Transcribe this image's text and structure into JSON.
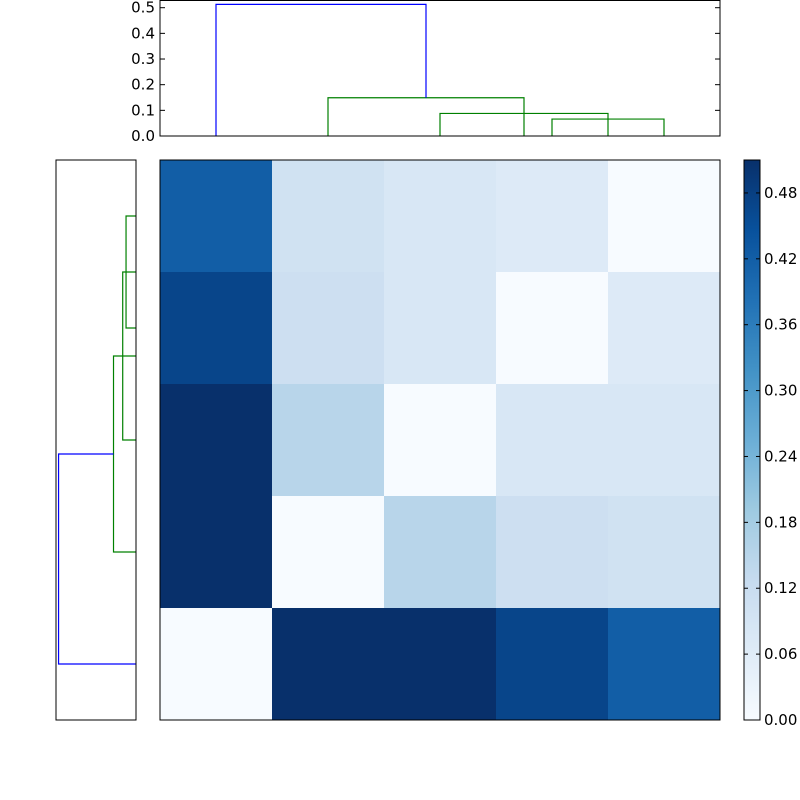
{
  "chart_data": {
    "type": "heatmap",
    "title": "",
    "colormap": "Blues",
    "colormap_stops": [
      "#f7fbff",
      "#deebf7",
      "#c6dbef",
      "#9ecae1",
      "#6baed6",
      "#4292c6",
      "#2171b5",
      "#08519c",
      "#08306b"
    ],
    "value_range": [
      0,
      0.51
    ],
    "matrix": [
      [
        0.42,
        0.1,
        0.08,
        0.066,
        0.0
      ],
      [
        0.47,
        0.11,
        0.08,
        0.0,
        0.066
      ],
      [
        0.51,
        0.15,
        0.0,
        0.08,
        0.08
      ],
      [
        0.51,
        0.0,
        0.15,
        0.11,
        0.1
      ],
      [
        0.0,
        0.51,
        0.51,
        0.47,
        0.42
      ]
    ],
    "colorbar": {
      "ticks": [
        "0.00",
        "0.06",
        "0.12",
        "0.18",
        "0.24",
        "0.30",
        "0.36",
        "0.42",
        "0.48"
      ]
    },
    "top_dendrogram": {
      "ylim": [
        0,
        0.53
      ],
      "yticks": [
        "0.0",
        "0.1",
        "0.2",
        "0.3",
        "0.4",
        "0.5"
      ],
      "links": [
        {
          "icoord": [
            35,
            35,
            45,
            45
          ],
          "dcoord": [
            0,
            0.066,
            0.066,
            0
          ],
          "color": "#008000"
        },
        {
          "icoord": [
            25,
            25,
            40,
            40
          ],
          "dcoord": [
            0,
            0.088,
            0.088,
            0
          ],
          "color": "#008000"
        },
        {
          "icoord": [
            15,
            15,
            32.5,
            32.5
          ],
          "dcoord": [
            0,
            0.149,
            0.149,
            0
          ],
          "color": "#008000"
        },
        {
          "icoord": [
            5,
            5,
            23.75,
            23.75
          ],
          "dcoord": [
            0,
            0.513,
            0.513,
            0.149
          ],
          "color": "#0000ff"
        }
      ]
    },
    "left_dendrogram": {
      "xlim": [
        0,
        0.53
      ],
      "links": [
        {
          "icoord": [
            35,
            35,
            45,
            45
          ],
          "dcoord": [
            0,
            0.066,
            0.066,
            0
          ],
          "color": "#008000"
        },
        {
          "icoord": [
            25,
            25,
            40,
            40
          ],
          "dcoord": [
            0,
            0.088,
            0.088,
            0
          ],
          "color": "#008000"
        },
        {
          "icoord": [
            15,
            15,
            32.5,
            32.5
          ],
          "dcoord": [
            0,
            0.149,
            0.149,
            0
          ],
          "color": "#008000"
        },
        {
          "icoord": [
            5,
            5,
            23.75,
            23.75
          ],
          "dcoord": [
            0,
            0.513,
            0.513,
            0.149
          ],
          "color": "#0000ff"
        }
      ]
    }
  }
}
